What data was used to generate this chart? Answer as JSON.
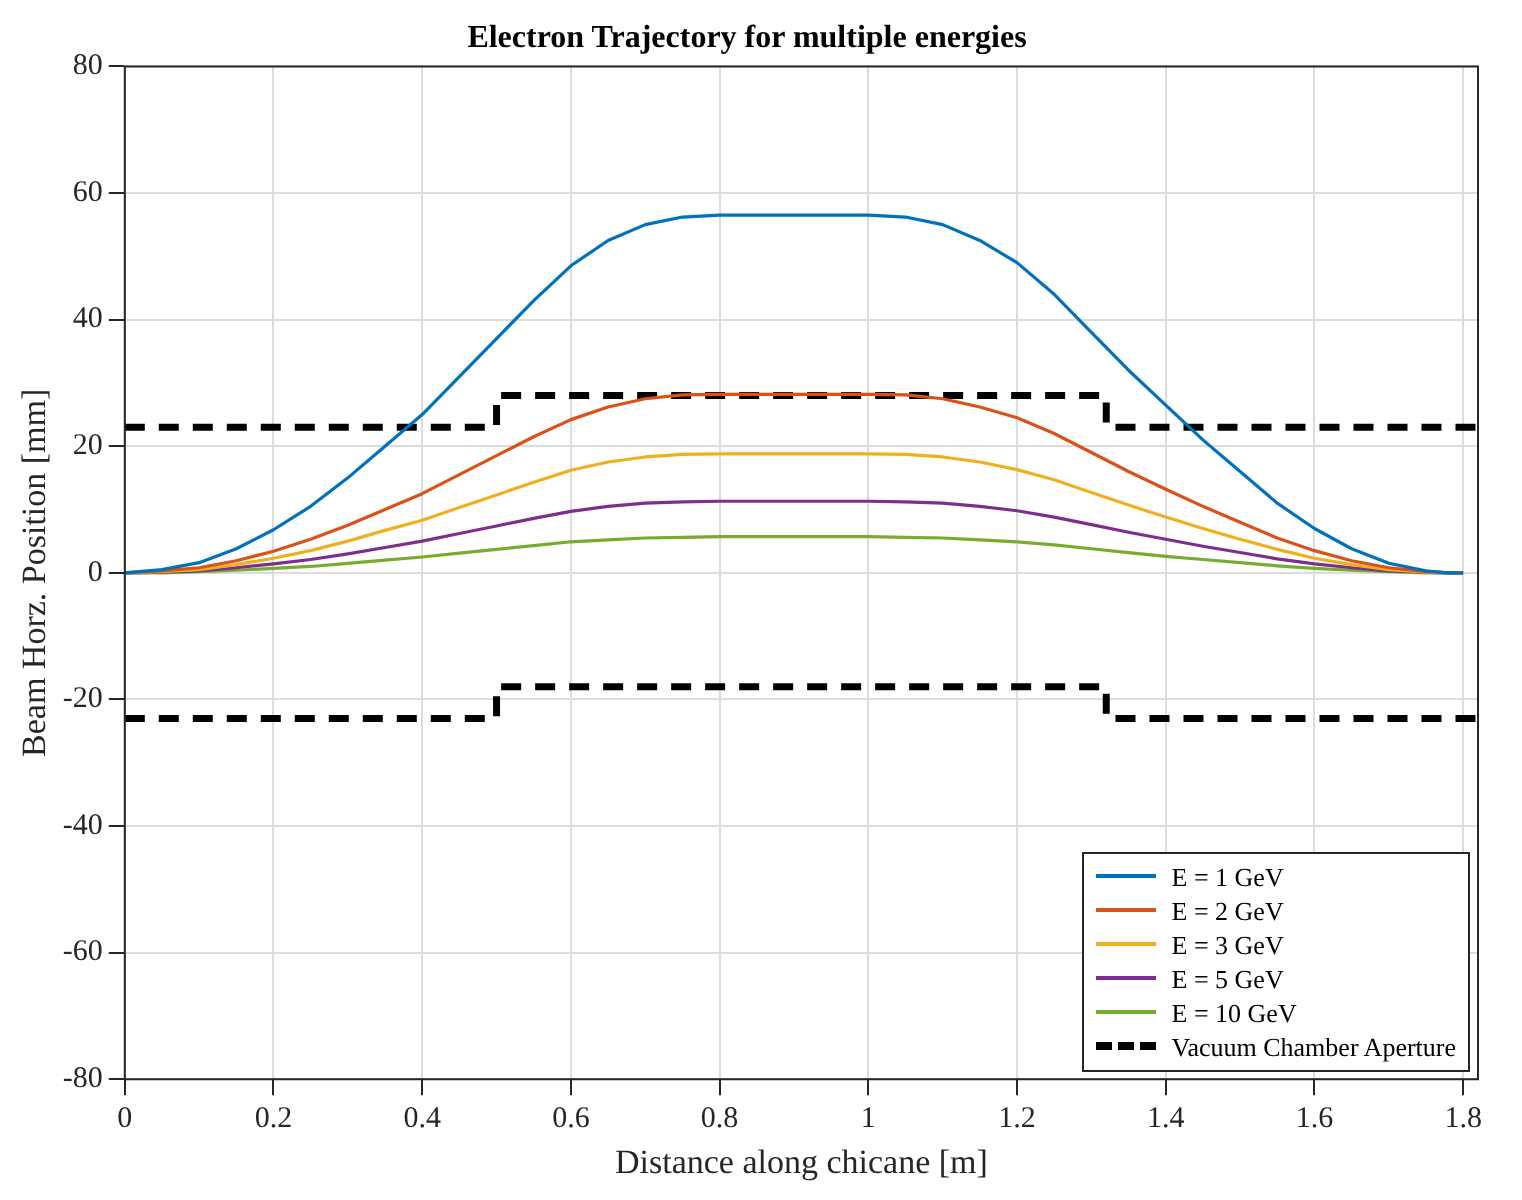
{
  "chart_data": {
    "type": "line",
    "title": "Electron Trajectory for multiple energies",
    "xlabel": "Distance along chicane [m]",
    "ylabel": "Beam Horz. Position [mm]",
    "xlim": [
      0,
      1.82
    ],
    "xticks": [
      0,
      0.2,
      0.4,
      0.6,
      0.8,
      1,
      1.2,
      1.4,
      1.6,
      1.8
    ],
    "ylim": [
      -80,
      80
    ],
    "yticks": [
      -80,
      -60,
      -40,
      -20,
      0,
      20,
      40,
      60,
      80
    ],
    "grid": true,
    "legend": "bottom right",
    "x": [
      0,
      0.05,
      0.1,
      0.15,
      0.2,
      0.25,
      0.3,
      0.35,
      0.4,
      0.45,
      0.5,
      0.55,
      0.6,
      0.65,
      0.7,
      0.75,
      0.8,
      0.9,
      1.0,
      1.05,
      1.1,
      1.15,
      1.2,
      1.25,
      1.3,
      1.35,
      1.4,
      1.45,
      1.5,
      1.55,
      1.6,
      1.65,
      1.7,
      1.75,
      1.78,
      1.8
    ],
    "series": [
      {
        "name": "E = 1 GeV",
        "color": "#0072bd",
        "values": [
          0,
          0.5,
          1.6,
          3.8,
          6.8,
          10.5,
          15,
          20,
          25,
          31,
          37,
          43,
          48.5,
          52.5,
          55,
          56.2,
          56.5,
          56.5,
          56.5,
          56.2,
          55,
          52.5,
          49,
          44,
          38,
          32,
          26.5,
          21,
          16,
          11,
          7,
          3.8,
          1.5,
          0.3,
          0,
          0
        ]
      },
      {
        "name": "E = 2 GeV",
        "color": "#d95319",
        "values": [
          0,
          0.3,
          0.8,
          1.9,
          3.4,
          5.3,
          7.5,
          10,
          12.5,
          15.5,
          18.5,
          21.5,
          24.2,
          26.2,
          27.5,
          28.1,
          28.2,
          28.2,
          28.2,
          28.1,
          27.5,
          26.2,
          24.5,
          22,
          19,
          16,
          13.2,
          10.5,
          8,
          5.5,
          3.5,
          1.9,
          0.8,
          0.2,
          0,
          0
        ]
      },
      {
        "name": "E = 3 GeV",
        "color": "#edb120",
        "values": [
          0,
          0.2,
          0.5,
          1.3,
          2.3,
          3.5,
          5,
          6.7,
          8.3,
          10.3,
          12.3,
          14.3,
          16.2,
          17.5,
          18.3,
          18.7,
          18.8,
          18.8,
          18.8,
          18.7,
          18.3,
          17.5,
          16.3,
          14.7,
          12.7,
          10.7,
          8.8,
          7,
          5.3,
          3.7,
          2.3,
          1.3,
          0.5,
          0.1,
          0,
          0
        ]
      },
      {
        "name": "E = 5 GeV",
        "color": "#7e2f8e",
        "values": [
          0,
          0.1,
          0.3,
          0.8,
          1.4,
          2.1,
          3,
          4,
          5,
          6.2,
          7.4,
          8.6,
          9.7,
          10.5,
          11,
          11.2,
          11.3,
          11.3,
          11.3,
          11.2,
          11,
          10.5,
          9.8,
          8.8,
          7.6,
          6.4,
          5.3,
          4.2,
          3.2,
          2.2,
          1.4,
          0.8,
          0.3,
          0.1,
          0,
          0
        ]
      },
      {
        "name": "E = 10 GeV",
        "color": "#77ac30",
        "values": [
          0,
          0,
          0.2,
          0.4,
          0.7,
          1,
          1.5,
          2,
          2.5,
          3.1,
          3.7,
          4.3,
          4.9,
          5.2,
          5.5,
          5.6,
          5.7,
          5.7,
          5.7,
          5.6,
          5.5,
          5.2,
          4.9,
          4.4,
          3.8,
          3.2,
          2.6,
          2.1,
          1.6,
          1.1,
          0.7,
          0.4,
          0.2,
          0,
          0,
          0
        ]
      },
      {
        "name": "Vacuum Chamber Aperture",
        "color": "#000000",
        "line_style": "dashed",
        "x": [
          0,
          0.5,
          0.5,
          1.32,
          1.32,
          1.82
        ],
        "values": [
          23,
          23,
          28,
          28,
          23,
          23
        ]
      },
      {
        "color": "#000000",
        "line_style": "dashed",
        "x": [
          0,
          0.5,
          0.5,
          1.32,
          1.32,
          1.82
        ],
        "values": [
          -23,
          -23,
          -18,
          -18,
          -23,
          -23
        ]
      }
    ]
  }
}
